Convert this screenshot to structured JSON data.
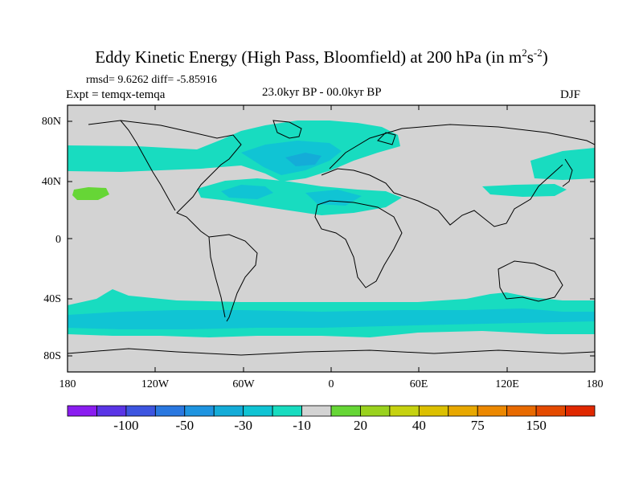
{
  "title": {
    "main": "Eddy Kinetic Energy (High Pass, Bloomfield) at 200 hPa (in m",
    "sup1": "2",
    "mid": "s",
    "sup2": "-2",
    "end": ")"
  },
  "stats": "rmsd= 9.6262 diff= -5.85916",
  "experiment": "Expt = temqx-temqa",
  "period": "23.0kyr BP - 00.0kyr BP",
  "season": "DJF",
  "map": {
    "lat_labels": [
      "80N",
      "40N",
      "0",
      "40S",
      "80S"
    ],
    "lon_labels": [
      "180",
      "120W",
      "60W",
      "0",
      "60E",
      "120E",
      "180"
    ],
    "background_color": "#d3d3d3"
  },
  "colorbar": {
    "colors": [
      "#8a1df0",
      "#5a35e6",
      "#3d55e0",
      "#2a78e0",
      "#1e94e0",
      "#14acd8",
      "#10c4d4",
      "#18dcc0",
      "#d3d3d3",
      "#66d636",
      "#9ad21e",
      "#c6d210",
      "#dcc000",
      "#e8a800",
      "#ec8800",
      "#e86a00",
      "#e44a00",
      "#e02800"
    ],
    "labels": [
      "-100",
      "-50",
      "-30",
      "-10",
      "20",
      "40",
      "75",
      "150"
    ]
  }
}
